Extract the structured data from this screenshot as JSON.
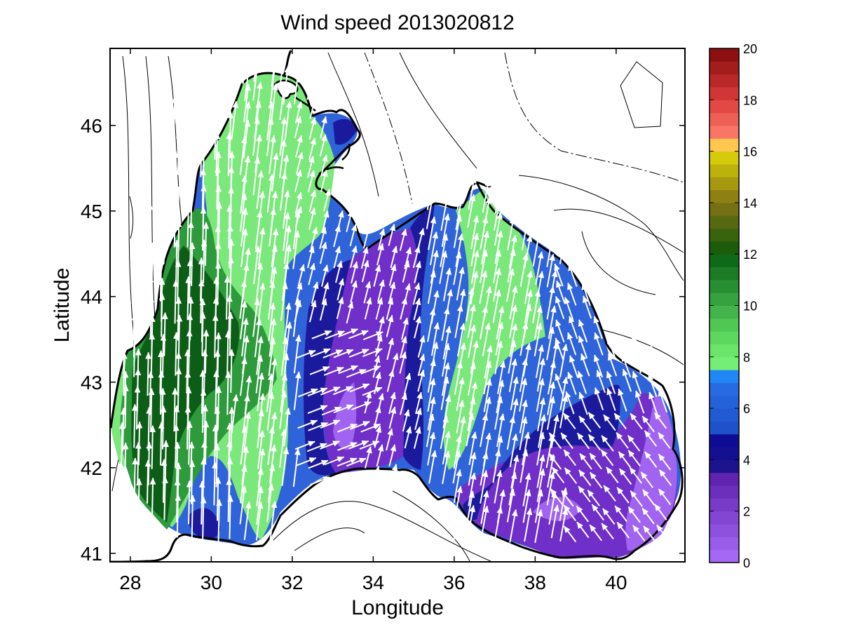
{
  "chart_data": {
    "type": "heatmap",
    "title": "Wind speed 2013020812",
    "xlabel": "Longitude",
    "ylabel": "Latitude",
    "xlim": [
      27.5,
      41.7
    ],
    "ylim": [
      40.9,
      46.9
    ],
    "x_ticks": [
      "28",
      "30",
      "32",
      "34",
      "36",
      "38",
      "40"
    ],
    "y_ticks": [
      "41",
      "42",
      "43",
      "44",
      "45",
      "46"
    ],
    "colorbar": {
      "range": [
        0,
        20
      ],
      "ticks": [
        "0",
        "2",
        "4",
        "6",
        "8",
        "10",
        "12",
        "14",
        "16",
        "18",
        "20"
      ],
      "bands": [
        {
          "from": 0,
          "to": 3.5,
          "color": "#7d3fd6"
        },
        {
          "from": 3.5,
          "to": 5,
          "color": "#1c1a9c"
        },
        {
          "from": 5,
          "to": 7.5,
          "color": "#2f63d9"
        },
        {
          "from": 7.5,
          "to": 8.5,
          "color": "#7ae87a"
        },
        {
          "from": 8.5,
          "to": 12,
          "color": "#2d9a3c"
        },
        {
          "from": 12,
          "to": 16,
          "color": "#8f7a10"
        },
        {
          "from": 16,
          "to": 20,
          "color": "#d42c2c"
        }
      ]
    },
    "speed_field": [
      {
        "lon": 28.5,
        "lat": 42.5,
        "speed": 11
      },
      {
        "lon": 29.5,
        "lat": 43.8,
        "speed": 11.5
      },
      {
        "lon": 30.5,
        "lat": 45.2,
        "speed": 8
      },
      {
        "lon": 31.0,
        "lat": 46.0,
        "speed": 8
      },
      {
        "lon": 32.8,
        "lat": 44.0,
        "speed": 5
      },
      {
        "lon": 33.5,
        "lat": 42.8,
        "speed": 2.5
      },
      {
        "lon": 34.8,
        "lat": 43.2,
        "speed": 4
      },
      {
        "lon": 35.6,
        "lat": 44.3,
        "speed": 6.5
      },
      {
        "lon": 37.0,
        "lat": 44.0,
        "speed": 8
      },
      {
        "lon": 38.5,
        "lat": 42.6,
        "speed": 4
      },
      {
        "lon": 39.5,
        "lat": 41.8,
        "speed": 2.5
      },
      {
        "lon": 41.0,
        "lat": 42.0,
        "speed": 1.5
      }
    ],
    "wind_direction": "predominantly northward (south-to-north), turning to north-east over the central basin and westward in the south-east",
    "grid": false,
    "colorbar_placement": "right"
  }
}
